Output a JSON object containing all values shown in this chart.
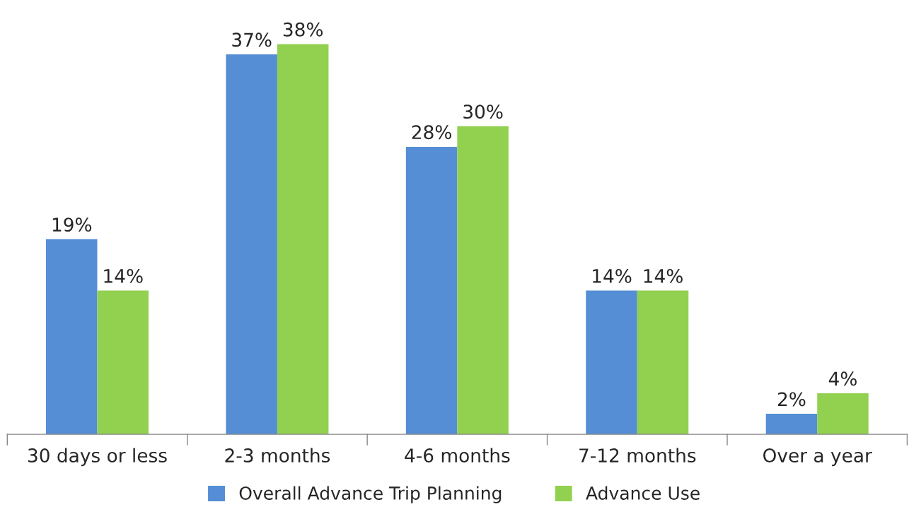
{
  "chart_data": {
    "type": "bar",
    "categories": [
      "30 days or less",
      "2-3 months",
      "4-6 months",
      "7-12 months",
      "Over a year"
    ],
    "series": [
      {
        "name": "Overall Advance Trip Planning",
        "color": "#558ed5",
        "values": [
          19,
          37,
          28,
          14,
          2
        ],
        "value_labels": [
          "19%",
          "37%",
          "28%",
          "14%",
          "2%"
        ]
      },
      {
        "name": "Advance Use",
        "color": "#92d050",
        "values": [
          14,
          38,
          30,
          14,
          4
        ],
        "value_labels": [
          "14%",
          "38%",
          "30%",
          "14%",
          "4%"
        ]
      }
    ],
    "legend": "bottom",
    "grid": false
  }
}
